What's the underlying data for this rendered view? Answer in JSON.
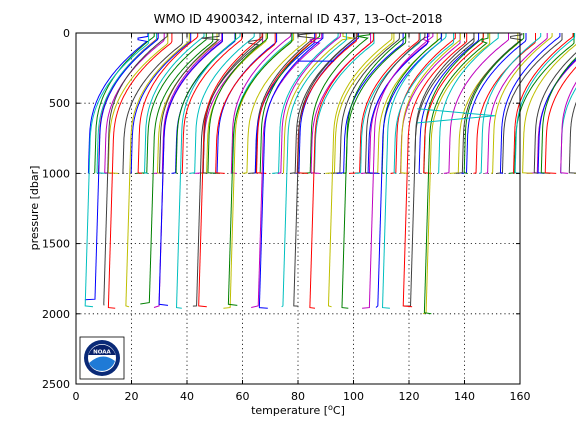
{
  "chart_data": {
    "type": "line",
    "title": "WMO ID 4900342, internal ID 437, 13–Oct–2018",
    "xlabel_prefix": "temperature [",
    "xlabel_unit_sup": "o",
    "xlabel_suffix": "C]",
    "ylabel": "pressure [dbar]",
    "xlim": [
      0,
      160
    ],
    "ylim": [
      0,
      2500
    ],
    "y_reversed": true,
    "x_ticks": [
      "0",
      "20",
      "40",
      "60",
      "80",
      "100",
      "120",
      "140",
      "160"
    ],
    "y_ticks": [
      "0",
      "500",
      "1000",
      "1500",
      "2000",
      "2500"
    ],
    "grid": true,
    "logo": {
      "text": "NOAA",
      "colors": {
        "outer": "#0a2a78",
        "ring": "#ffffff",
        "wave": "#1f7ad6",
        "sky": "#08216b"
      }
    },
    "series_style": {
      "num_shallow_profiles": 133,
      "profile_spacing": 2.7,
      "base_surface_temp": 26,
      "surface_spread": 8,
      "deep_drop": 21,
      "shallow_max_pressure": 1000,
      "deep_profile_offsets": [
        3,
        6,
        10,
        14,
        19,
        23,
        28,
        33,
        38,
        42,
        47,
        53,
        58,
        63,
        69,
        74,
        80,
        86,
        92,
        98,
        103,
        108,
        113,
        118,
        121,
        125,
        128
      ],
      "deep_max_pressures": [
        1900,
        1950,
        1940,
        1960,
        1950,
        1930,
        1955,
        1940,
        1960,
        1945,
        1950,
        1960,
        1940,
        1955,
        1960,
        1950,
        1945,
        1960,
        1950,
        1960,
        1960,
        1955,
        1960,
        1945,
        1950,
        2000,
        2000
      ],
      "colors": [
        "#0000ff",
        "#008000",
        "#ff0000",
        "#00bfbf",
        "#bf00bf",
        "#bfbf00",
        "#404040"
      ]
    },
    "annotations": [
      {
        "type": "spike",
        "x": [
          80,
          93
        ],
        "y": [
          200,
          200
        ],
        "color": "#0000ff"
      },
      {
        "type": "spike",
        "x": [
          123,
          151,
          123
        ],
        "y": [
          540,
          590,
          640
        ],
        "color": "#00bfbf"
      }
    ]
  }
}
